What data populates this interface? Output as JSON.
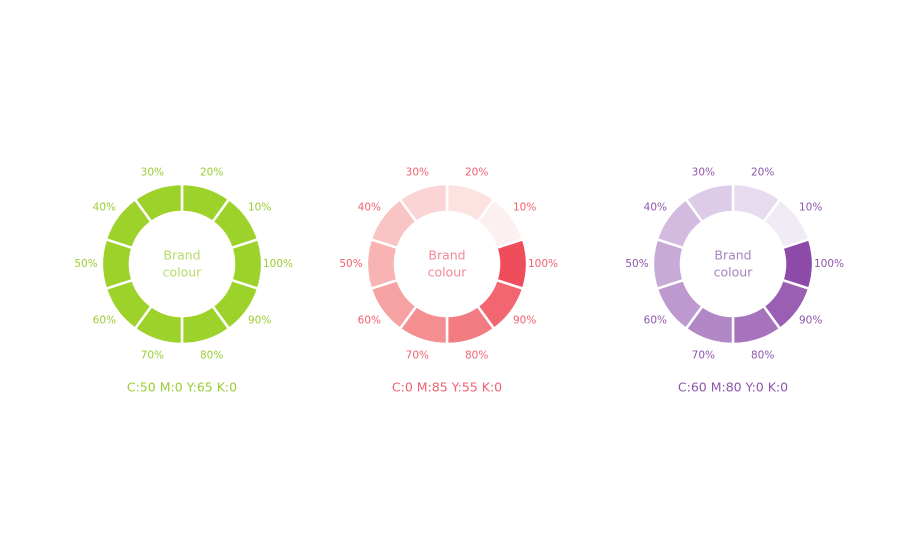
{
  "wheels": [
    {
      "center": [
        "Brand",
        "colour"
      ],
      "caption": "C:50 M:0 Y:65 K:0",
      "text_color": "#9acd32",
      "center_color": "#b5db68",
      "segments": [
        {
          "label": "20%",
          "color": "#9dd22a"
        },
        {
          "label": "10%",
          "color": "#9dd22a"
        },
        {
          "label": "100%",
          "color": "#9dd22a"
        },
        {
          "label": "90%",
          "color": "#9dd22a"
        },
        {
          "label": "80%",
          "color": "#9dd22a"
        },
        {
          "label": "70%",
          "color": "#9dd22a"
        },
        {
          "label": "60%",
          "color": "#9dd22a"
        },
        {
          "label": "50%",
          "color": "#9dd22a"
        },
        {
          "label": "40%",
          "color": "#9dd22a"
        },
        {
          "label": "30%",
          "color": "#9dd22a"
        }
      ]
    },
    {
      "center": [
        "Brand",
        "colour"
      ],
      "caption": "C:0 M:85 Y:55 K:0",
      "text_color": "#ef6070",
      "center_color": "#f28a94",
      "segments": [
        {
          "label": "20%",
          "color": "#fce3e2"
        },
        {
          "label": "10%",
          "color": "#fdf0f0"
        },
        {
          "label": "100%",
          "color": "#ef4c5c"
        },
        {
          "label": "90%",
          "color": "#f16670"
        },
        {
          "label": "80%",
          "color": "#f37c82"
        },
        {
          "label": "70%",
          "color": "#f48e91"
        },
        {
          "label": "60%",
          "color": "#f6a1a2"
        },
        {
          "label": "50%",
          "color": "#f8b3b3"
        },
        {
          "label": "40%",
          "color": "#f9c4c4"
        },
        {
          "label": "30%",
          "color": "#fbd5d5"
        }
      ]
    },
    {
      "center": [
        "Brand",
        "colour"
      ],
      "caption": "C:60 M:80 Y:0 K:0",
      "text_color": "#8e55ac",
      "center_color": "#a883bd",
      "segments": [
        {
          "label": "20%",
          "color": "#e7dcee"
        },
        {
          "label": "10%",
          "color": "#f1ebf6"
        },
        {
          "label": "100%",
          "color": "#8e4aa9"
        },
        {
          "label": "90%",
          "color": "#9a5eb2"
        },
        {
          "label": "80%",
          "color": "#a673bc"
        },
        {
          "label": "70%",
          "color": "#b287c6"
        },
        {
          "label": "60%",
          "color": "#bd99cf"
        },
        {
          "label": "50%",
          "color": "#c8aad7"
        },
        {
          "label": "40%",
          "color": "#d3bbdf"
        },
        {
          "label": "30%",
          "color": "#ddcce7"
        }
      ]
    }
  ]
}
